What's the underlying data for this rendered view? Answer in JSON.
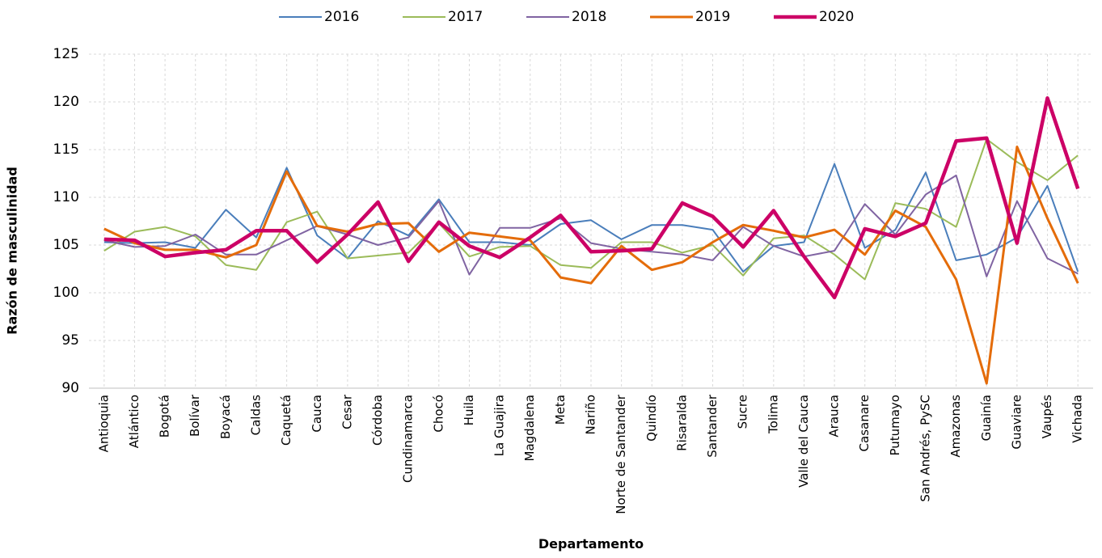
{
  "chart_data": {
    "type": "line",
    "x_label": "Departamento",
    "y_label": "Razón de masculinidad",
    "categories": [
      "Antioquia",
      "Atlántico",
      "Bogotá",
      "Bolívar",
      "Boyacá",
      "Caldas",
      "Caquetá",
      "Cauca",
      "Cesar",
      "Córdoba",
      "Cundinamarca",
      "Chocó",
      "Huila",
      "La Guajira",
      "Magdalena",
      "Meta",
      "Nariño",
      "Norte de Santander",
      "Quindío",
      "Risaralda",
      "Santander",
      "Sucre",
      "Tolima",
      "Valle del Cauca",
      "Arauca",
      "Casanare",
      "Putumayo",
      "San Andrés, PySC",
      "Amazonas",
      "Guainía",
      "Guaviare",
      "Vaupés",
      "Vichada"
    ],
    "series": [
      {
        "name": "2016",
        "color": "#4a7ebb",
        "values": [
          105.3,
          105.2,
          105.3,
          104.7,
          108.7,
          105.8,
          113.1,
          106.0,
          103.6,
          107.5,
          106.0,
          109.8,
          105.3,
          105.3,
          105.0,
          107.2,
          107.6,
          105.6,
          107.1,
          107.1,
          106.6,
          102.2,
          104.9,
          105.3,
          113.5,
          104.7,
          106.6,
          112.6,
          103.4,
          104.0,
          105.8,
          111.2,
          102.2
        ]
      },
      {
        "name": "2017",
        "color": "#9bbb59",
        "values": [
          104.4,
          106.4,
          106.9,
          105.9,
          102.9,
          102.4,
          107.4,
          108.5,
          103.6,
          103.9,
          104.2,
          107.3,
          103.8,
          104.8,
          104.9,
          102.9,
          102.6,
          105.3,
          105.3,
          104.2,
          105.0,
          101.8,
          105.7,
          106.0,
          104.0,
          101.4,
          109.4,
          108.8,
          106.9,
          116.1,
          113.7,
          111.8,
          114.4
        ]
      },
      {
        "name": "2018",
        "color": "#8064a2",
        "values": [
          105.5,
          104.8,
          104.9,
          106.1,
          104.0,
          104.0,
          105.5,
          107.0,
          106.1,
          105.0,
          105.8,
          109.6,
          101.9,
          106.8,
          106.8,
          107.8,
          105.2,
          104.6,
          104.3,
          104.0,
          103.4,
          106.9,
          104.9,
          103.8,
          104.4,
          109.3,
          106.1,
          110.3,
          112.3,
          101.7,
          109.6,
          103.6,
          102.0
        ]
      },
      {
        "name": "2019",
        "color": "#e46c0a",
        "values": [
          106.7,
          105.2,
          104.5,
          104.5,
          103.7,
          105.0,
          112.7,
          107.0,
          106.4,
          107.2,
          107.3,
          104.3,
          106.3,
          105.9,
          105.5,
          101.6,
          101.0,
          104.9,
          102.4,
          103.2,
          105.3,
          107.1,
          106.5,
          105.8,
          106.6,
          104.0,
          108.6,
          106.9,
          101.4,
          90.5,
          115.3,
          107.8,
          101.0
        ]
      },
      {
        "name": "2020",
        "color": "#cc0066",
        "values": [
          105.6,
          105.5,
          103.8,
          104.2,
          104.5,
          106.5,
          106.5,
          103.2,
          106.1,
          109.5,
          103.3,
          107.4,
          104.9,
          103.7,
          105.8,
          108.1,
          104.3,
          104.4,
          104.6,
          109.4,
          108.0,
          104.8,
          108.6,
          103.8,
          99.5,
          106.7,
          105.9,
          107.3,
          115.9,
          116.2,
          105.2,
          120.4,
          110.9
        ]
      }
    ],
    "ylim": [
      90,
      125
    ],
    "yticks": [
      90,
      95,
      100,
      105,
      110,
      115,
      120,
      125
    ],
    "grid": true,
    "legend": "top"
  }
}
